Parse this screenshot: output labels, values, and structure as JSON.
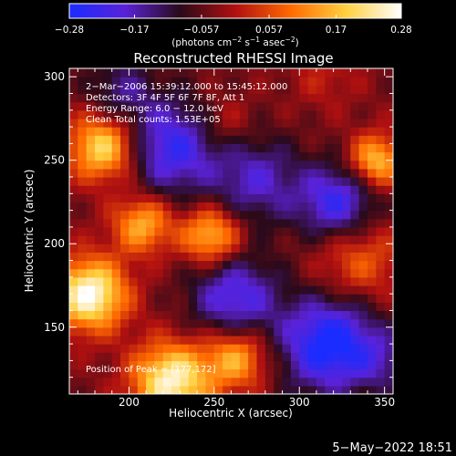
{
  "colorbar": {
    "tick_labels": [
      "−0.28",
      "−0.17",
      "−0.057",
      "0.057",
      "0.17",
      "0.28"
    ],
    "tick_values": [
      -0.28,
      -0.17,
      -0.057,
      0.057,
      0.17,
      0.28
    ],
    "range": [
      -0.28,
      0.28
    ],
    "unit_prefix": "(photons cm",
    "unit_exp1": "−2",
    "unit_mid": " s",
    "unit_exp2": "−1",
    "unit_mid2": " asec",
    "unit_exp3": "−2",
    "unit_suffix": ")",
    "palette": [
      "#1a2cff",
      "#5a22d8",
      "#2a0a1a",
      "#b01010",
      "#ff6a00",
      "#ffd040",
      "#ffffff"
    ]
  },
  "chart_data": {
    "type": "heatmap",
    "title": "Reconstructed RHESSI Image",
    "xlabel": "Heliocentric X (arcsec)",
    "ylabel": "Heliocentric Y (arcsec)",
    "xlim": [
      165,
      355
    ],
    "ylim": [
      110,
      305
    ],
    "x_ticks": [
      200,
      250,
      300,
      350
    ],
    "y_ticks": [
      150,
      200,
      250,
      300
    ],
    "x_tick_labels": [
      "200",
      "250",
      "300",
      "350"
    ],
    "y_tick_labels": [
      "150",
      "200",
      "250",
      "300"
    ],
    "annotation_lines": [
      " 2−Mar−2006 15:39:12.000 to 15:45:12.000",
      "Detectors: 3F 4F 5F 6F 7F 8F, Att 1",
      "Energy Range: 6.0 − 12.0 keV",
      "Clean    Total counts: 1.53E+05"
    ],
    "peak_label": "Position of Peak = [177,172]",
    "peak": [
      177,
      172
    ],
    "sources": [
      {
        "x": 177,
        "y": 170,
        "amp": 0.32,
        "sigma": 15
      },
      {
        "x": 185,
        "y": 258,
        "amp": 0.26,
        "sigma": 14
      },
      {
        "x": 225,
        "y": 118,
        "amp": 0.3,
        "sigma": 16
      },
      {
        "x": 263,
        "y": 132,
        "amp": 0.2,
        "sigma": 13
      },
      {
        "x": 248,
        "y": 205,
        "amp": 0.22,
        "sigma": 12
      },
      {
        "x": 208,
        "y": 212,
        "amp": 0.2,
        "sigma": 12
      },
      {
        "x": 345,
        "y": 250,
        "amp": 0.22,
        "sigma": 11
      },
      {
        "x": 335,
        "y": 190,
        "amp": 0.12,
        "sigma": 18
      },
      {
        "x": 255,
        "y": 272,
        "amp": 0.07,
        "sigma": 12
      },
      {
        "x": 315,
        "y": 300,
        "amp": 0.05,
        "sigma": 14
      },
      {
        "x": 225,
        "y": 258,
        "amp": -0.2,
        "sigma": 20
      },
      {
        "x": 275,
        "y": 238,
        "amp": -0.14,
        "sigma": 18
      },
      {
        "x": 318,
        "y": 140,
        "amp": -0.26,
        "sigma": 20
      },
      {
        "x": 322,
        "y": 225,
        "amp": -0.2,
        "sigma": 16
      },
      {
        "x": 262,
        "y": 168,
        "amp": -0.18,
        "sigma": 18
      },
      {
        "x": 195,
        "y": 292,
        "amp": -0.1,
        "sigma": 14
      },
      {
        "x": 350,
        "y": 130,
        "amp": -0.08,
        "sigma": 12
      }
    ]
  },
  "footer": {
    "timestamp": "5−May−2022 18:51"
  }
}
